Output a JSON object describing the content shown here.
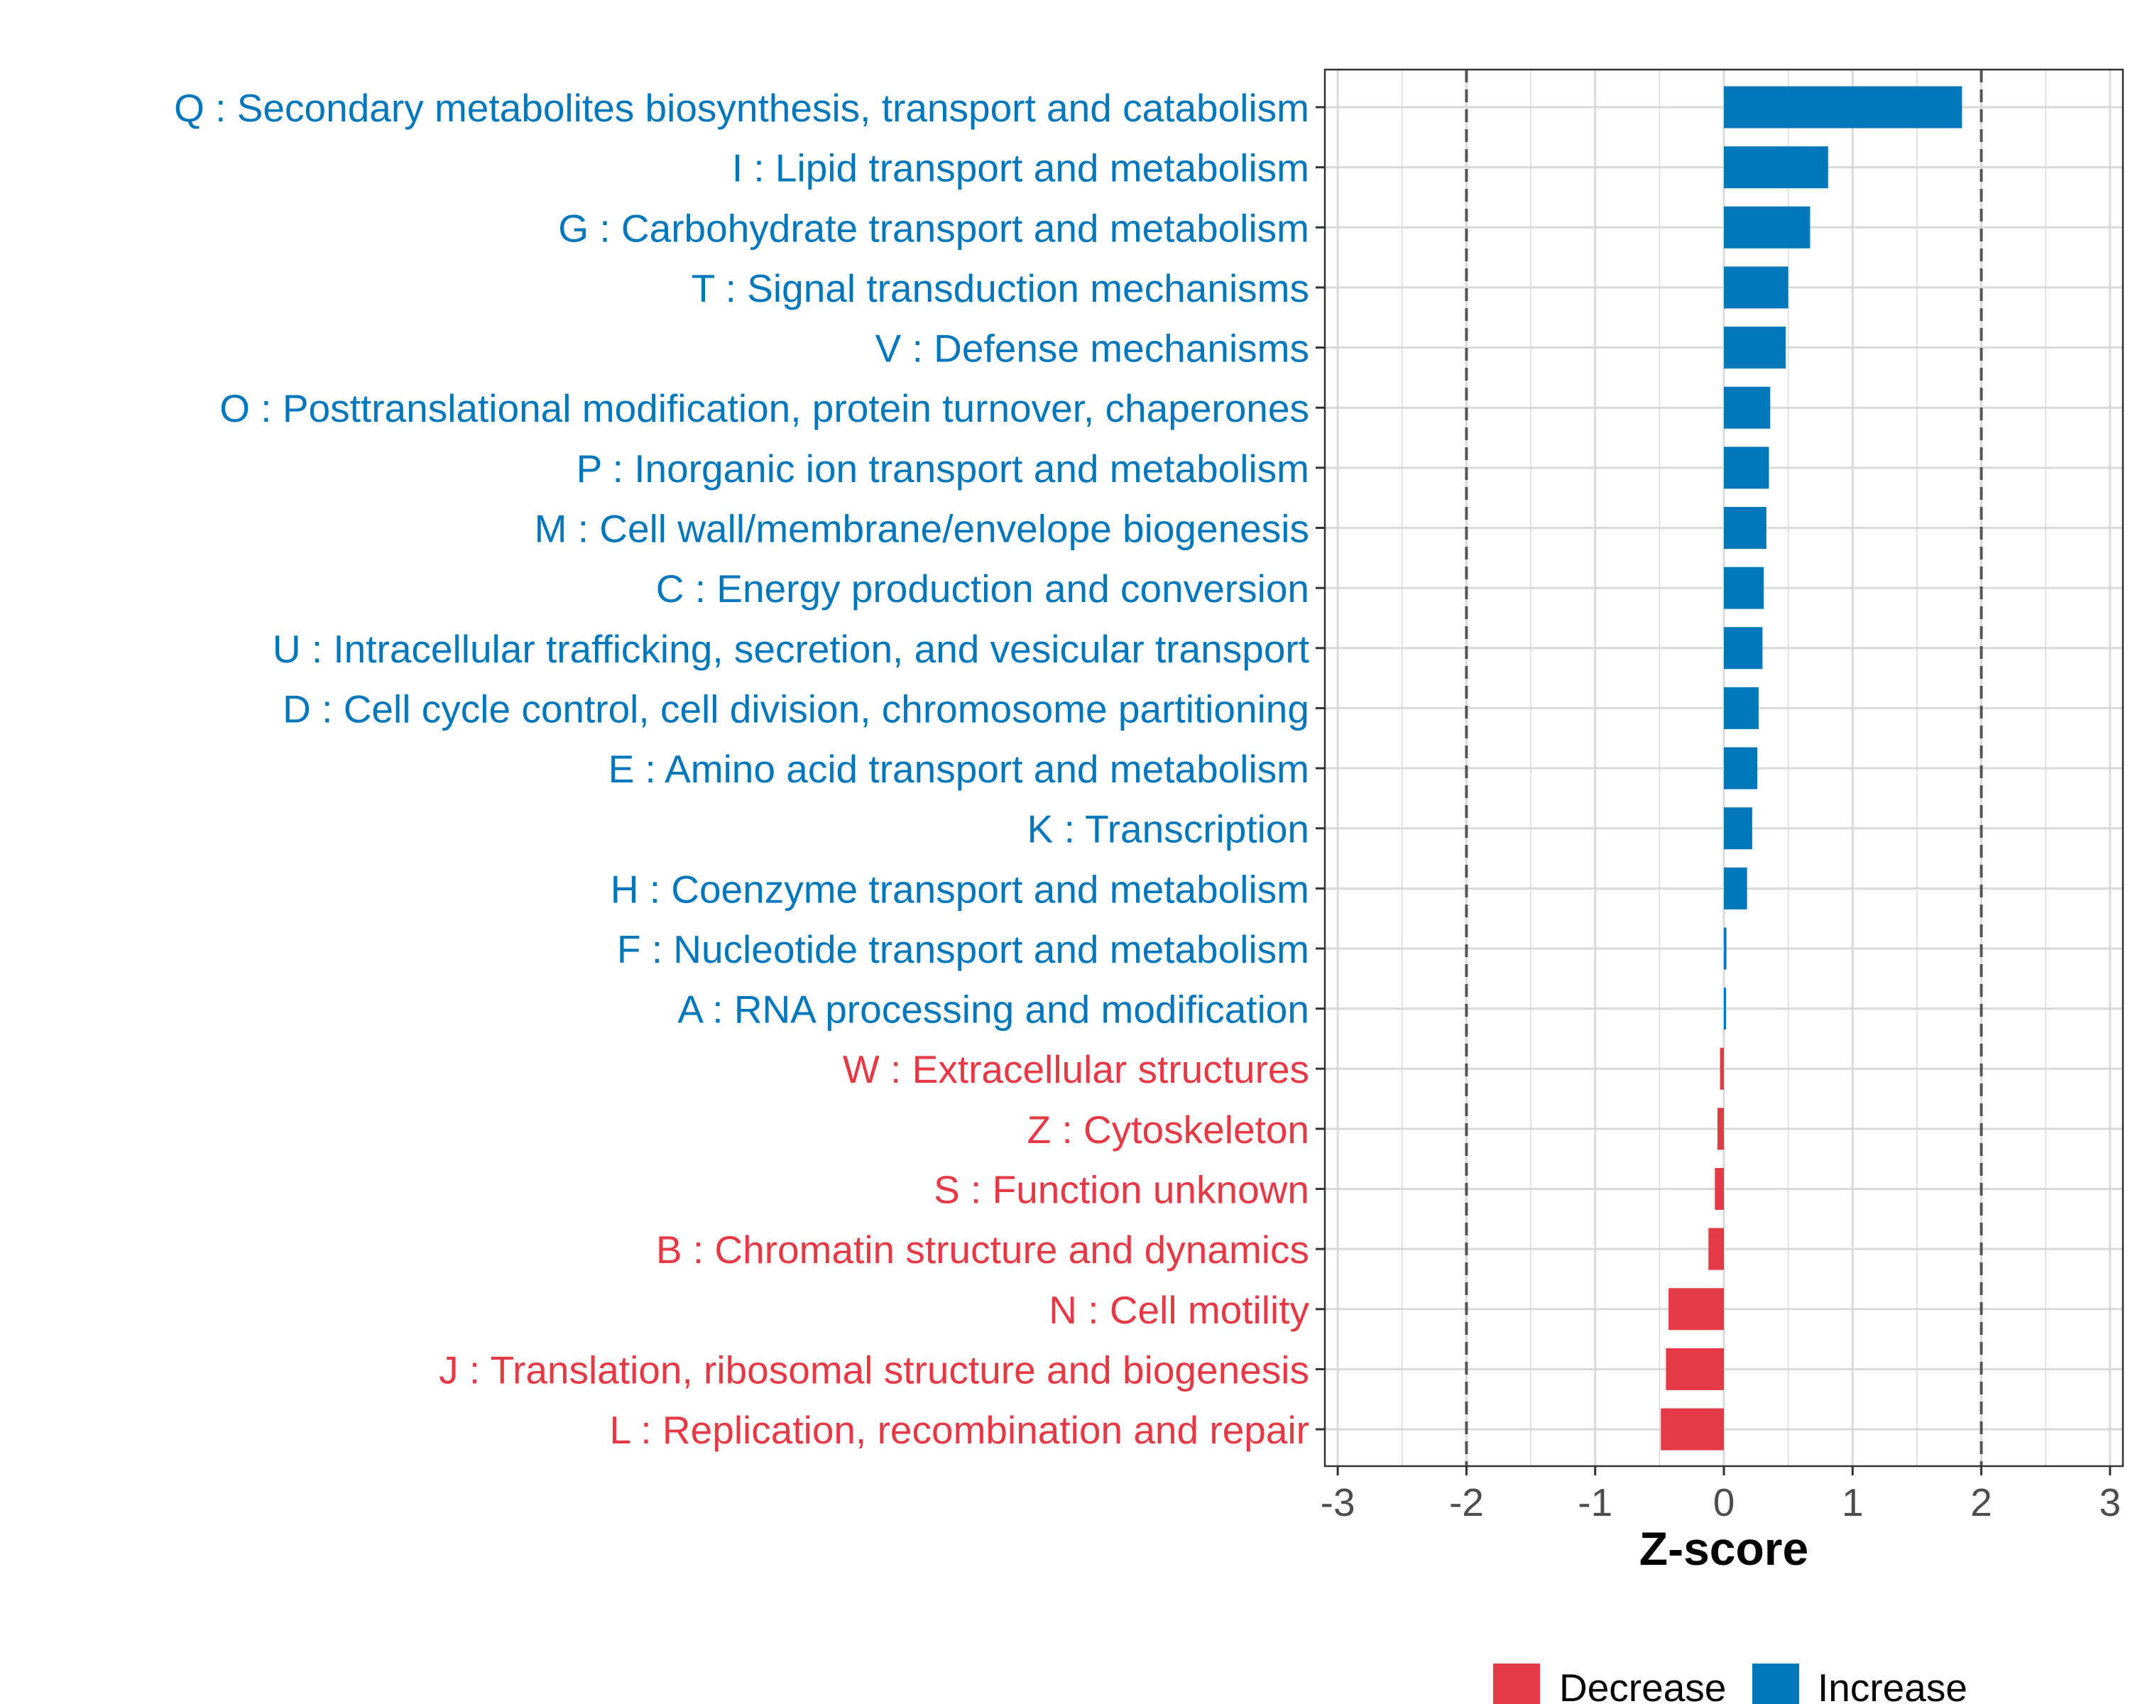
{
  "chart_data": {
    "type": "bar",
    "orientation": "horizontal",
    "xlabel": "Z-score",
    "xlim": [
      -3.1,
      3.1
    ],
    "xticks": [
      -3,
      -2,
      -1,
      0,
      1,
      2,
      3
    ],
    "xtick_labels": [
      "-3",
      "-2",
      "-1",
      "0",
      "1",
      "2",
      "3"
    ],
    "reference_lines": [
      -2,
      2
    ],
    "grid": true,
    "colors": {
      "Decrease": "#e63946",
      "Increase": "#0077bb",
      "grid": "#d9d9d9",
      "ref_line": "#555555",
      "axis_text": "#4d4d4d"
    },
    "legend": {
      "position": "bottom",
      "entries": [
        "Decrease",
        "Increase"
      ]
    },
    "categories": [
      "Q : Secondary metabolites biosynthesis, transport and catabolism",
      "I : Lipid transport and metabolism",
      "G : Carbohydrate transport and metabolism",
      "T : Signal transduction mechanisms",
      "V : Defense mechanisms",
      "O : Posttranslational modification, protein turnover, chaperones",
      "P : Inorganic ion transport and metabolism",
      "M : Cell wall/membrane/envelope biogenesis",
      "C : Energy production and conversion",
      "U : Intracellular trafficking, secretion, and vesicular transport",
      "D : Cell cycle control, cell division, chromosome partitioning",
      "E : Amino acid transport and metabolism",
      "K : Transcription",
      "H : Coenzyme transport and metabolism",
      "F : Nucleotide transport and metabolism",
      "A : RNA processing and modification",
      "W : Extracellular structures",
      "Z : Cytoskeleton",
      "S : Function unknown",
      "B : Chromatin structure and dynamics",
      "N : Cell motility",
      "J : Translation, ribosomal structure and biogenesis",
      "L : Replication, recombination and repair"
    ],
    "values": [
      1.85,
      0.81,
      0.67,
      0.5,
      0.48,
      0.36,
      0.35,
      0.33,
      0.31,
      0.3,
      0.27,
      0.26,
      0.22,
      0.18,
      0.02,
      0.01,
      -0.03,
      -0.05,
      -0.07,
      -0.12,
      -0.43,
      -0.45,
      -0.49
    ],
    "groups": [
      "Increase",
      "Increase",
      "Increase",
      "Increase",
      "Increase",
      "Increase",
      "Increase",
      "Increase",
      "Increase",
      "Increase",
      "Increase",
      "Increase",
      "Increase",
      "Increase",
      "Increase",
      "Increase",
      "Decrease",
      "Decrease",
      "Decrease",
      "Decrease",
      "Decrease",
      "Decrease",
      "Decrease"
    ]
  }
}
